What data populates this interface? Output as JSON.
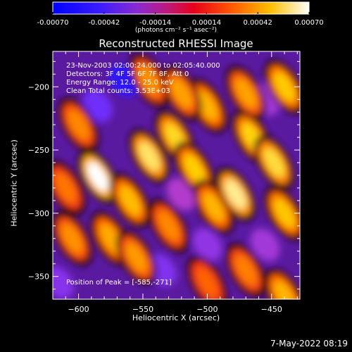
{
  "colorbar": {
    "tick_labels": [
      "-0.00070",
      "-0.00042",
      "-0.00014",
      "0.00014",
      "0.00042",
      "0.00070"
    ],
    "units": "(photons cm⁻² s⁻¹ asec⁻²)",
    "range": [
      -0.0007,
      0.0007
    ],
    "colors": [
      "#0000ff",
      "#6a2cff",
      "#b83cc8",
      "#e8003a",
      "#ff6a00",
      "#ffd200",
      "#ffffff"
    ]
  },
  "chart_data": {
    "type": "heatmap",
    "title": "Reconstructed RHESSI Image",
    "xlabel": "Heliocentric X (arcsec)",
    "ylabel": "Heliocentric Y (arcsec)",
    "xlim": [
      -620,
      -428
    ],
    "ylim": [
      -368,
      -172
    ],
    "x_ticks": [
      -600,
      -550,
      -500,
      -450
    ],
    "y_ticks": [
      -350,
      -300,
      -250,
      -200
    ],
    "x_tick_labels": [
      "−600",
      "−550",
      "−500",
      "−450"
    ],
    "y_tick_labels": [
      "−350",
      "−300",
      "−250",
      "−200"
    ],
    "annotations": [
      "23-Nov-2003 02:00:24.000 to 02:05:40.000",
      "Detectors: 3F 4F 5F 6F 7F 8F, Att 0",
      "Energy Range: 12.0 - 25.0 keV",
      "Clean     Total counts: 3.53E+03"
    ],
    "peak_label": "Position of Peak = [-585,-271]",
    "peak": [
      -585,
      -271
    ],
    "sources": [
      {
        "x": -585,
        "y": -271,
        "value": 0.0007
      },
      {
        "x": -560,
        "y": -290,
        "value": 0.00042
      },
      {
        "x": -545,
        "y": -255,
        "value": 0.00056
      },
      {
        "x": -525,
        "y": -240,
        "value": 0.0005
      },
      {
        "x": -510,
        "y": -265,
        "value": 0.00046
      },
      {
        "x": -495,
        "y": -295,
        "value": 0.0004
      },
      {
        "x": -478,
        "y": -285,
        "value": 0.0006
      },
      {
        "x": -465,
        "y": -240,
        "value": 0.00048
      },
      {
        "x": -448,
        "y": -260,
        "value": 0.00052
      },
      {
        "x": -440,
        "y": -300,
        "value": 0.00044
      },
      {
        "x": -500,
        "y": -215,
        "value": 0.0004
      },
      {
        "x": -470,
        "y": -205,
        "value": 0.00036
      },
      {
        "x": -440,
        "y": -200,
        "value": 0.00045
      },
      {
        "x": -600,
        "y": -230,
        "value": 0.0003
      },
      {
        "x": -605,
        "y": -320,
        "value": 0.00032
      },
      {
        "x": -575,
        "y": -320,
        "value": 0.00038
      },
      {
        "x": -555,
        "y": -335,
        "value": 0.00034
      },
      {
        "x": -545,
        "y": -195,
        "value": 0.00032
      },
      {
        "x": -520,
        "y": -205,
        "value": 0.00036
      },
      {
        "x": -440,
        "y": -365,
        "value": 0.0004
      },
      {
        "x": -470,
        "y": -345,
        "value": 0.00028
      },
      {
        "x": -610,
        "y": -280,
        "value": 0.00026
      },
      {
        "x": -530,
        "y": -310,
        "value": 0.0003
      },
      {
        "x": -500,
        "y": -355,
        "value": 0.00022
      }
    ],
    "negative_regions": [
      {
        "x": -565,
        "y": -195,
        "value": -0.0006
      },
      {
        "x": -585,
        "y": -215,
        "value": -0.00045
      },
      {
        "x": -535,
        "y": -345,
        "value": -0.0004
      },
      {
        "x": -500,
        "y": -325,
        "value": -0.00035
      },
      {
        "x": -455,
        "y": -325,
        "value": -0.0003
      },
      {
        "x": -615,
        "y": -355,
        "value": -0.00038
      },
      {
        "x": -455,
        "y": -210,
        "value": -0.0003
      },
      {
        "x": -520,
        "y": -285,
        "value": -0.00025
      }
    ]
  },
  "timestamp": "7-May-2022 08:19"
}
